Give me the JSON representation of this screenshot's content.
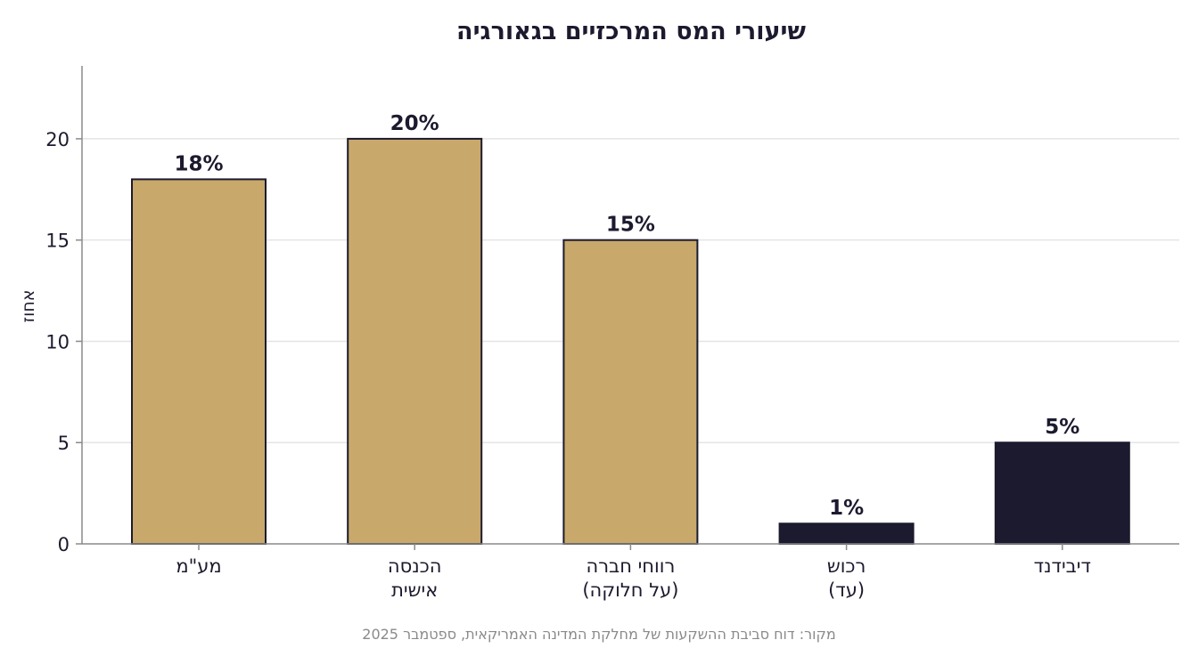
{
  "chart_data": {
    "type": "bar",
    "title": "שיעורי המס המרכזיים בגאורגיה",
    "ylabel": "אחוז",
    "xlabel": "",
    "ylim": [
      0,
      23.6
    ],
    "yticks": [
      0,
      5,
      10,
      15,
      20
    ],
    "grid": true,
    "categories": [
      [
        "מע\"מ"
      ],
      [
        "הכנסה",
        "אישית"
      ],
      [
        "רווחי חברה",
        "(על חלוקה)"
      ],
      [
        "רכוש",
        "(עד)"
      ],
      [
        "דיבידנד"
      ]
    ],
    "values": [
      18,
      20,
      15,
      1,
      5
    ],
    "data_labels": [
      "18%",
      "20%",
      "15%",
      "1%",
      "5%"
    ],
    "colors": [
      "#c8a96b",
      "#c8a96b",
      "#c8a96b",
      "#1c1a2e",
      "#1c1a2e"
    ],
    "edge_color": "#1c1a2e",
    "source": "מקור: דוח סביבת ההשקעות של מחלקת המדינה האמריקאית, ספטמבר 2025"
  }
}
